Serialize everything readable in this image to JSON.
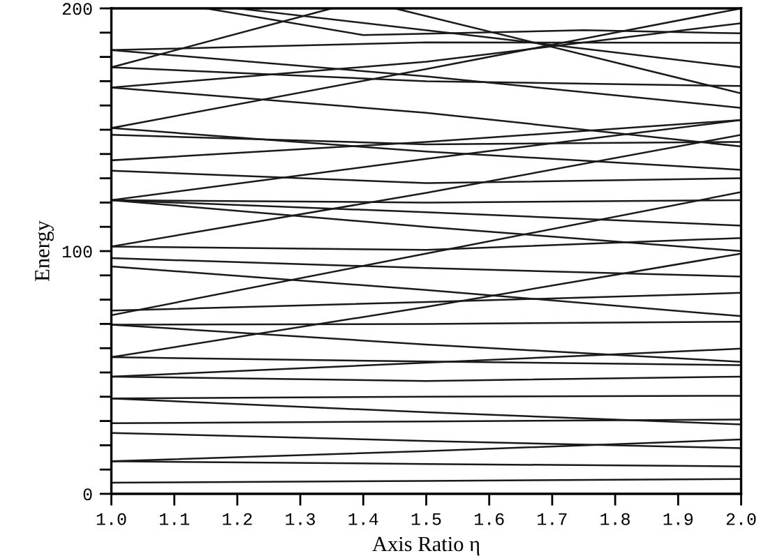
{
  "chart_data": {
    "type": "line",
    "xlabel": "Axis Ratio η",
    "ylabel": "Energy",
    "x": [
      1.0,
      1.5,
      2.0
    ],
    "xlim": [
      1.0,
      2.0
    ],
    "ylim": [
      0,
      200
    ],
    "xticks": [
      {
        "value": 1.0,
        "label": "1.0"
      },
      {
        "value": 1.1,
        "label": "1.1"
      },
      {
        "value": 1.2,
        "label": "1.2"
      },
      {
        "value": 1.3,
        "label": "1.3"
      },
      {
        "value": 1.4,
        "label": "1.4"
      },
      {
        "value": 1.5,
        "label": "1.5"
      },
      {
        "value": 1.6,
        "label": "1.6"
      },
      {
        "value": 1.7,
        "label": "1.7"
      },
      {
        "value": 1.8,
        "label": "1.8"
      },
      {
        "value": 1.9,
        "label": "1.9"
      },
      {
        "value": 2.0,
        "label": "2.0"
      }
    ],
    "yticks": [
      0,
      {
        "value": 10,
        "label": null
      },
      {
        "value": 20,
        "label": null
      },
      {
        "value": 30,
        "label": null
      },
      {
        "value": 40,
        "label": null
      },
      {
        "value": 50,
        "label": null
      },
      {
        "value": 60,
        "label": null
      },
      {
        "value": 70,
        "label": null
      },
      {
        "value": 80,
        "label": null
      },
      {
        "value": 90,
        "label": null
      },
      100,
      {
        "value": 110,
        "label": null
      },
      {
        "value": 120,
        "label": null
      },
      {
        "value": 130,
        "label": null
      },
      {
        "value": 140,
        "label": null
      },
      {
        "value": 150,
        "label": null
      },
      {
        "value": 160,
        "label": null
      },
      {
        "value": 170,
        "label": null
      },
      {
        "value": 180,
        "label": null
      },
      {
        "value": 190,
        "label": null
      },
      200
    ],
    "grid": false,
    "marker": "none",
    "line_style": "solid",
    "series": [
      {
        "color": "#1a1a1a",
        "values": [
          4.6,
          5.3,
          6.1
        ]
      },
      {
        "color": "#1a1a1a",
        "values": [
          13.4,
          12.3,
          11.3
        ]
      },
      {
        "color": "#1a1a1a",
        "values": [
          13.4,
          17.6,
          22.4
        ]
      },
      {
        "color": "#1a1a1a",
        "values": [
          25.1,
          21.8,
          18.8
        ]
      },
      {
        "color": "#1a1a1a",
        "values": [
          29.1,
          29.8,
          30.6
        ]
      },
      {
        "color": "#1a1a1a",
        "values": [
          39.3,
          33.6,
          28.6
        ]
      },
      {
        "color": "#1a1a1a",
        "values": [
          39.3,
          40,
          40.4
        ]
      },
      {
        "color": "#1a1a1a",
        "values": [
          48.3,
          46.5,
          48.3
        ]
      },
      {
        "color": "#1a1a1a",
        "values": [
          48.3,
          54,
          59.8
        ]
      },
      {
        "color": "#1a1a1a",
        "values": [
          56.3,
          54.5,
          53
        ]
      },
      {
        "color": "#1a1a1a",
        "values": [
          69.7,
          61.5,
          54.4
        ]
      },
      {
        "color": "#1a1a1a",
        "values": [
          73.6,
          99,
          124.3
        ]
      },
      {
        "color": "#1a1a1a",
        "values": [
          75.5,
          79,
          82.8
        ]
      },
      {
        "color": "#1a1a1a",
        "values": [
          69.7,
          70,
          70.9
        ]
      },
      {
        "color": "#1a1a1a",
        "values": [
          97.1,
          93,
          89.5
        ]
      },
      {
        "color": "#1a1a1a",
        "values": [
          93.7,
          84,
          73.2
        ]
      },
      {
        "color": "#1a1a1a",
        "values": [
          101.9,
          124,
          147.9
        ]
      },
      {
        "color": "#1a1a1a",
        "values": [
          101.9,
          100.5,
          105.4
        ]
      },
      {
        "color": "#1a1a1a",
        "values": [
          121,
          116,
          110.5
        ]
      },
      {
        "color": "#1a1a1a",
        "values": [
          121,
          110,
          100
        ]
      },
      {
        "color": "#1a1a1a",
        "values": [
          121,
          120,
          121
        ]
      },
      {
        "color": "#1a1a1a",
        "values": [
          56.3,
          77,
          99
        ]
      },
      {
        "color": "#1a1a1a",
        "values": [
          133.1,
          128,
          130
        ]
      },
      {
        "color": "#1a1a1a",
        "values": [
          137.4,
          145,
          154
        ]
      },
      {
        "color": "#1a1a1a",
        "values": [
          150.7,
          141,
          133.5
        ]
      },
      {
        "color": "#1a1a1a",
        "values": [
          147.9,
          144,
          145
        ]
      },
      {
        "color": "#1a1a1a",
        "values": [
          150.7,
          175,
          200
        ]
      },
      {
        "color": "#1a1a1a",
        "values": [
          167.4,
          157,
          143.1
        ]
      },
      {
        "color": "#1a1a1a",
        "values": [
          167.4,
          178,
          193.9
        ]
      },
      {
        "color": "#1a1a1a",
        "values": [
          175.7,
          170,
          168
        ]
      },
      {
        "color": "#1a1a1a",
        "x": [
          1.0,
          1.35
        ],
        "values": [
          175.7,
          200
        ]
      },
      {
        "color": "#1a1a1a",
        "values": [
          182.8,
          172,
          159
        ]
      },
      {
        "color": "#1a1a1a",
        "values": [
          182.8,
          186,
          185.8
        ]
      },
      {
        "color": "#1a1a1a",
        "x": [
          1.2,
          1.6,
          2.0
        ],
        "values": [
          200,
          188,
          175.7
        ]
      },
      {
        "color": "#1a1a1a",
        "x": [
          1.15,
          1.4,
          1.75,
          2.0
        ],
        "values": [
          200,
          189,
          191,
          189.7
        ]
      },
      {
        "color": "#1a1a1a",
        "values": [
          121,
          138,
          154
        ]
      },
      {
        "color": "#1a1a1a",
        "x": [
          1.45,
          2.0
        ],
        "values": [
          200,
          165
        ]
      }
    ]
  }
}
